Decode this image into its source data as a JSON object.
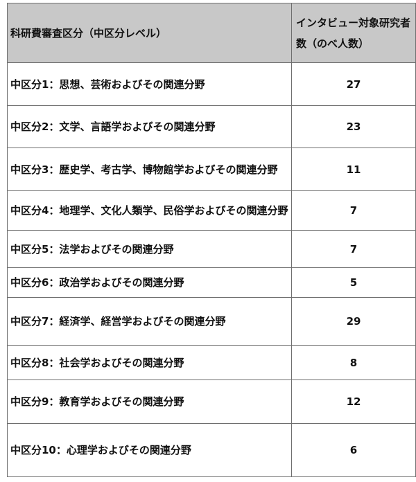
{
  "header": {
    "category": "科研費審査区分（中区分レベル）",
    "count": "インタビュー対象研究者数（のべ人数）"
  },
  "rows": [
    {
      "category": "中区分1：思想、芸術およびその関連分野",
      "count": "27"
    },
    {
      "category": "中区分2：文学、言語学およびその関連分野",
      "count": "23"
    },
    {
      "category": "中区分3：歴史学、考古学、博物館学およびその関連分野",
      "count": "11"
    },
    {
      "category": "中区分4：地理学、文化人類学、民俗学およびその関連分野",
      "count": "7"
    },
    {
      "category": "中区分5：法学およびその関連分野",
      "count": "7"
    },
    {
      "category": "中区分6：政治学およびその関連分野",
      "count": "5"
    },
    {
      "category": "中区分7：経済学、経営学およびその関連分野",
      "count": "29"
    },
    {
      "category": "中区分8：社会学およびその関連分野",
      "count": "8"
    },
    {
      "category": "中区分9：教育学およびその関連分野",
      "count": "12"
    },
    {
      "category": "中区分10：心理学およびその関連分野",
      "count": "6"
    }
  ]
}
